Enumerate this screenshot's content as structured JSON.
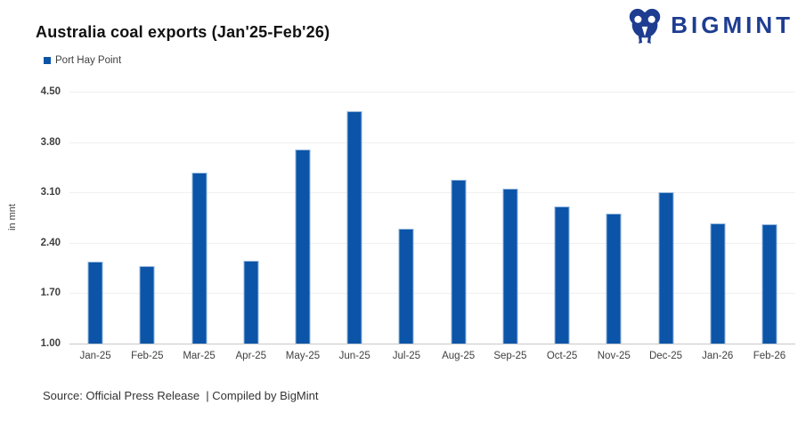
{
  "brand": {
    "name": "BIGMINT"
  },
  "chart_data": {
    "type": "bar",
    "title": "Australia coal exports (Jan'25-Feb'26)",
    "ylabel": "in mnt",
    "xlabel": "",
    "categories": [
      "Jan-25",
      "Feb-25",
      "Mar-25",
      "Apr-25",
      "May-25",
      "Jun-25",
      "Jul-25",
      "Aug-25",
      "Sep-25",
      "Oct-25",
      "Nov-25",
      "Dec-25",
      "Jan-26",
      "Feb-26"
    ],
    "series": [
      {
        "name": "Port Hay Point",
        "values": [
          2.14,
          2.07,
          3.37,
          2.15,
          3.7,
          4.23,
          2.6,
          3.28,
          3.15,
          2.9,
          2.81,
          3.1,
          2.67,
          2.66
        ]
      }
    ],
    "ylim": [
      1.0,
      4.5
    ],
    "ytick_step": 0.7,
    "yticks": [
      "1.00",
      "1.70",
      "2.40",
      "3.10",
      "3.80",
      "4.50"
    ],
    "grid": true,
    "legend_position": "top-left"
  },
  "footer": {
    "source": "Source: Official Press Release  | Compiled by BigMint"
  },
  "colors": {
    "bar": "#0B54A8",
    "brand": "#1E3D91",
    "gridline": "#F0F0F0",
    "baseline": "#C9C9C9",
    "axis_text": "#404040",
    "title_text": "#111111"
  }
}
